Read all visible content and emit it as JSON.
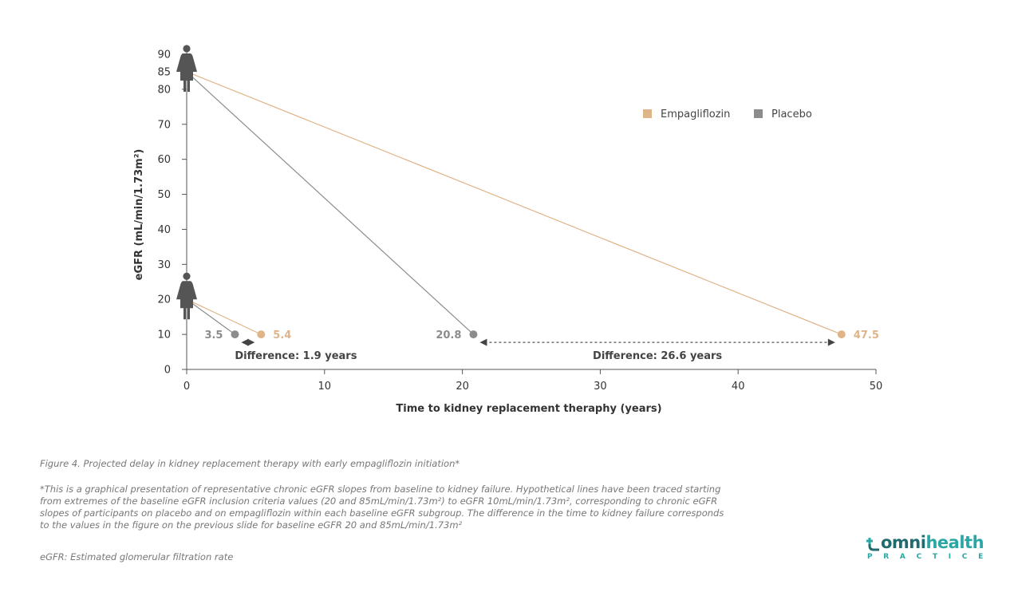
{
  "chart_data": {
    "type": "line",
    "xlabel": "Time to kidney replacement theraphy (years)",
    "ylabel": "eGFR (mL/min/1.73m²)",
    "xlim": [
      0,
      50
    ],
    "ylim": [
      0,
      90
    ],
    "x_ticks": [
      "0",
      "10",
      "20",
      "30",
      "40",
      "50"
    ],
    "y_ticks": [
      "0",
      "10",
      "20",
      "30",
      "40",
      "50",
      "60",
      "70",
      "80",
      "85",
      "90"
    ],
    "legend": {
      "position": "top-right",
      "items": [
        "Empagliflozin",
        "Placebo"
      ]
    },
    "grid": false,
    "series": [
      {
        "name": "Empagliflozin",
        "color": "#e0b489",
        "points": [
          [
            0,
            85
          ],
          [
            47.5,
            10
          ]
        ]
      },
      {
        "name": "Placebo",
        "color": "#8c8c8c",
        "points": [
          [
            0,
            85
          ],
          [
            20.8,
            10
          ]
        ]
      },
      {
        "name": "Empagliflozin",
        "color": "#e0b489",
        "points": [
          [
            0,
            20
          ],
          [
            5.4,
            10
          ]
        ]
      },
      {
        "name": "Placebo",
        "color": "#8c8c8c",
        "points": [
          [
            0,
            20
          ],
          [
            3.5,
            10
          ]
        ]
      }
    ],
    "point_labels": [
      {
        "text": "3.5",
        "x": 3.5,
        "y": 10,
        "series": "Placebo"
      },
      {
        "text": "5.4",
        "x": 5.4,
        "y": 10,
        "series": "Empagliflozin"
      },
      {
        "text": "20.8",
        "x": 20.8,
        "y": 10,
        "series": "Placebo"
      },
      {
        "text": "47.5",
        "x": 47.5,
        "y": 10,
        "series": "Empagliflozin"
      }
    ],
    "annotations": [
      {
        "text": "Difference: 1.9 years",
        "from_x": 3.5,
        "to_x": 5.4
      },
      {
        "text": "Difference: 26.6 years",
        "from_x": 20.8,
        "to_x": 47.5
      }
    ],
    "person_icon_baselines": [
      85,
      20
    ]
  },
  "captions": {
    "title": "Figure 4. Projected delay in kidney replacement therapy with early empagliflozin initiation*",
    "note": "*This is a graphical presentation of representative chronic eGFR slopes from baseline to kidney failure. Hypothetical lines have been traced starting from extremes of the baseline eGFR inclusion criteria values (20 and 85mL/min/1.73m²) to eGFR 10mL/min/1.73m², corresponding to chronic eGFR slopes of participants on placebo and on empagliflozin within each baseline eGFR subgroup. The difference in the time to kidney failure corresponds to the values in the figure on the previous slide for baseline eGFR 20 and 85mL/min/1.73m²",
    "abbrev": "eGFR: Estimated glomerular filtration rate"
  },
  "logo": {
    "word_1": "omni",
    "word_2": "health",
    "sub": "PRACTICE"
  },
  "colors": {
    "empagliflozin": "#e0b489",
    "placebo": "#8c8c8c",
    "icon": "#555555",
    "axis": "#555555"
  },
  "icons": {
    "person": "person-icon"
  }
}
